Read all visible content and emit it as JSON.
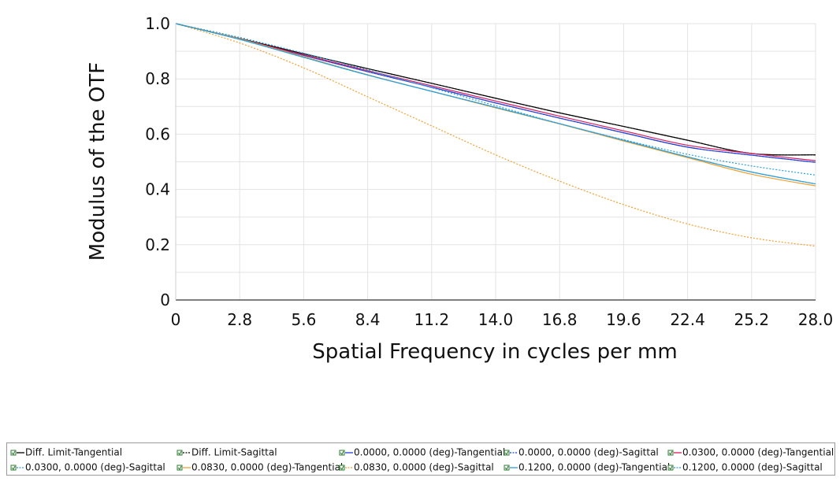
{
  "chart_data": {
    "type": "line",
    "title": "",
    "xlabel": "Spatial Frequency in cycles per mm",
    "ylabel": "Modulus of the OTF",
    "xlim": [
      0,
      28
    ],
    "ylim": [
      0,
      1
    ],
    "x_ticks": [
      "0",
      "2.8",
      "5.6",
      "8.4",
      "11.2",
      "14.0",
      "16.8",
      "19.6",
      "22.4",
      "25.2",
      "28.0"
    ],
    "y_ticks": [
      "0",
      "0.2",
      "0.4",
      "0.6",
      "0.8",
      "1.0"
    ],
    "grid": true,
    "legend_position": "bottom",
    "x": [
      0,
      2.8,
      5.6,
      8.4,
      11.2,
      14.0,
      16.8,
      19.6,
      22.4,
      25.2,
      28.0
    ],
    "series": [
      {
        "name": "Diff. Limit-Tangential",
        "color": "#000000",
        "dash": false,
        "values": [
          1.0,
          0.946,
          0.891,
          0.837,
          0.784,
          0.73,
          0.677,
          0.628,
          0.578,
          0.53,
          0.525
        ]
      },
      {
        "name": "Diff. Limit-Sagittal",
        "color": "#000000",
        "dash": true,
        "values": [
          1.0,
          0.946,
          0.891,
          0.837,
          0.784,
          0.73,
          0.677,
          0.628,
          0.578,
          0.53,
          0.525
        ]
      },
      {
        "name": "0.0000, 0.0000 (deg)-Tangential",
        "color": "#1f3fd6",
        "dash": false,
        "values": [
          1.0,
          0.945,
          0.885,
          0.826,
          0.77,
          0.713,
          0.658,
          0.605,
          0.553,
          0.524,
          0.498
        ]
      },
      {
        "name": "0.0000, 0.0000 (deg)-Sagittal",
        "color": "#1f3fd6",
        "dash": true,
        "values": [
          1.0,
          0.945,
          0.885,
          0.826,
          0.77,
          0.713,
          0.658,
          0.605,
          0.553,
          0.524,
          0.498
        ]
      },
      {
        "name": "0.0300, 0.0000 (deg)-Tangential",
        "color": "#d81b5a",
        "dash": false,
        "values": [
          1.0,
          0.945,
          0.887,
          0.83,
          0.775,
          0.72,
          0.665,
          0.612,
          0.56,
          0.53,
          0.504
        ]
      },
      {
        "name": "0.0300, 0.0000 (deg)-Sagittal",
        "color": "#2aa0d8",
        "dash": true,
        "values": [
          1.0,
          0.95,
          0.893,
          0.832,
          0.768,
          0.703,
          0.638,
          0.58,
          0.527,
          0.485,
          0.452
        ]
      },
      {
        "name": "0.0830, 0.0000 (deg)-Tangential",
        "color": "#f0a030",
        "dash": false,
        "values": [
          1.0,
          0.945,
          0.88,
          0.815,
          0.755,
          0.695,
          0.637,
          0.575,
          0.515,
          0.455,
          0.413
        ]
      },
      {
        "name": "0.0830, 0.0000 (deg)-Sagittal",
        "color": "#f0a030",
        "dash": true,
        "values": [
          1.0,
          0.93,
          0.84,
          0.735,
          0.63,
          0.525,
          0.43,
          0.345,
          0.275,
          0.225,
          0.195
        ]
      },
      {
        "name": "0.1200, 0.0000 (deg)-Tangential",
        "color": "#2a9fd8",
        "dash": false,
        "values": [
          1.0,
          0.943,
          0.878,
          0.814,
          0.755,
          0.697,
          0.638,
          0.578,
          0.518,
          0.463,
          0.42
        ]
      },
      {
        "name": "0.1200, 0.0000 (deg)-Sagittal",
        "color": "#2a9fd8",
        "dash": true,
        "values": [
          1.0,
          0.943,
          0.878,
          0.814,
          0.755,
          0.697,
          0.638,
          0.578,
          0.518,
          0.463,
          0.42
        ]
      }
    ]
  }
}
